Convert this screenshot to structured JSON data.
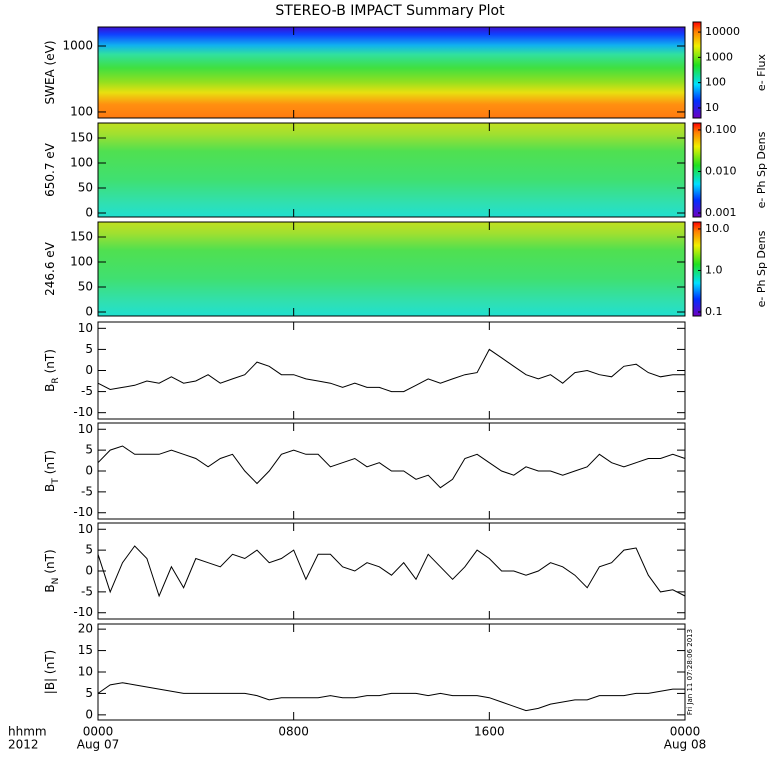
{
  "title": "STEREO-B IMPACT Summary Plot",
  "stamp": "Fri Jan 11 07:28:06 2013",
  "x_axis": {
    "xlim": [
      0,
      24
    ],
    "xticks": [
      {
        "value": 0,
        "label": "0000"
      },
      {
        "value": 8,
        "label": "0800"
      },
      {
        "value": 16,
        "label": "1600"
      },
      {
        "value": 24,
        "label": "0000"
      }
    ],
    "date_labels": [
      {
        "value": 0,
        "label": "Aug 07"
      },
      {
        "value": 24,
        "label": "Aug 08"
      }
    ],
    "corner_labels": [
      "hhmm",
      "2012"
    ]
  },
  "chart_data": [
    {
      "type": "spectrogram",
      "ylabel": "SWEA (eV)",
      "log_y": true,
      "ylim": [
        81,
        1940
      ],
      "yticks": [
        100,
        1000
      ],
      "colorbar": {
        "label": "e- Flux",
        "log": true,
        "clim": [
          4,
          25000
        ],
        "ticks": [
          10,
          100,
          1000,
          10000
        ]
      },
      "palette": "swea"
    },
    {
      "type": "spectrogram",
      "ylabel": "650.7 eV",
      "log_y": false,
      "ylim": [
        -8,
        180
      ],
      "yticks": [
        0,
        50,
        100,
        150
      ],
      "colorbar": {
        "label": "e- Ph Sp Dens",
        "log": true,
        "clim": [
          0.0008,
          0.147
        ],
        "ticks": [
          {
            "value": 0.001,
            "label": "0.001"
          },
          {
            "value": 0.01,
            "label": "0.010"
          },
          {
            "value": 0.1,
            "label": "0.100"
          }
        ]
      },
      "palette": "pad"
    },
    {
      "type": "spectrogram",
      "ylabel": "246.6 eV",
      "log_y": false,
      "ylim": [
        -8,
        180
      ],
      "yticks": [
        0,
        50,
        100,
        150
      ],
      "colorbar": {
        "label": "e- Ph Sp Dens",
        "log": true,
        "clim": [
          0.08,
          14.7
        ],
        "ticks": [
          0.1,
          {
            "value": 1,
            "label": "1.0"
          },
          {
            "value": 10,
            "label": "10.0"
          }
        ]
      },
      "palette": "pad"
    },
    {
      "type": "line",
      "ylabel": "B",
      "ylabel_sub": "R",
      "ylabel_unit": "(nT)",
      "ylim": [
        -11.5,
        11.5
      ],
      "yticks": [
        -10,
        -5,
        0,
        5,
        10
      ],
      "color": "#000000",
      "x": [
        0,
        0.5,
        1,
        1.5,
        2,
        2.5,
        3,
        3.5,
        4,
        4.5,
        5,
        5.5,
        6,
        6.5,
        7,
        7.5,
        8,
        8.5,
        9,
        9.5,
        10,
        10.5,
        11,
        11.5,
        12,
        12.5,
        13,
        13.5,
        14,
        14.5,
        15,
        15.5,
        16,
        16.5,
        17,
        17.5,
        18,
        18.5,
        19,
        19.5,
        20,
        20.5,
        21,
        21.5,
        22,
        22.5,
        23,
        23.5,
        24
      ],
      "values": [
        -3,
        -4.5,
        -4,
        -3.5,
        -2.5,
        -3,
        -1.5,
        -3,
        -2.5,
        -1,
        -3,
        -2,
        -1,
        2,
        1,
        -1,
        -1,
        -2,
        -2.5,
        -3,
        -4,
        -3,
        -4,
        -4,
        -5,
        -5,
        -3.5,
        -2,
        -3,
        -2,
        -1,
        -0.5,
        5,
        3,
        1,
        -1,
        -2,
        -1,
        -3,
        -0.5,
        0,
        -1,
        -1.5,
        1,
        1.5,
        -0.5,
        -1.5,
        -1,
        -1
      ]
    },
    {
      "type": "line",
      "ylabel": "B",
      "ylabel_sub": "T",
      "ylabel_unit": "(nT)",
      "ylim": [
        -11.5,
        11.5
      ],
      "yticks": [
        -10,
        -5,
        0,
        5,
        10
      ],
      "color": "#000000",
      "x": [
        0,
        0.5,
        1,
        1.5,
        2,
        2.5,
        3,
        3.5,
        4,
        4.5,
        5,
        5.5,
        6,
        6.5,
        7,
        7.5,
        8,
        8.5,
        9,
        9.5,
        10,
        10.5,
        11,
        11.5,
        12,
        12.5,
        13,
        13.5,
        14,
        14.5,
        15,
        15.5,
        16,
        16.5,
        17,
        17.5,
        18,
        18.5,
        19,
        19.5,
        20,
        20.5,
        21,
        21.5,
        22,
        22.5,
        23,
        23.5,
        24
      ],
      "values": [
        2,
        5,
        6,
        4,
        4,
        4,
        5,
        4,
        3,
        1,
        3,
        4,
        0,
        -3,
        0,
        4,
        5,
        4,
        4,
        1,
        2,
        3,
        1,
        2,
        0,
        0,
        -2,
        -1,
        -4,
        -2,
        3,
        4,
        2,
        0,
        -1,
        1,
        0,
        0,
        -1,
        0,
        1,
        4,
        2,
        1,
        2,
        3,
        3,
        4,
        3
      ]
    },
    {
      "type": "line",
      "ylabel": "B",
      "ylabel_sub": "N",
      "ylabel_unit": "(nT)",
      "ylim": [
        -11.5,
        11.5
      ],
      "yticks": [
        -10,
        -5,
        0,
        5,
        10
      ],
      "color": "#000000",
      "x": [
        0,
        0.5,
        1,
        1.5,
        2,
        2.5,
        3,
        3.5,
        4,
        4.5,
        5,
        5.5,
        6,
        6.5,
        7,
        7.5,
        8,
        8.5,
        9,
        9.5,
        10,
        10.5,
        11,
        11.5,
        12,
        12.5,
        13,
        13.5,
        14,
        14.5,
        15,
        15.5,
        16,
        16.5,
        17,
        17.5,
        18,
        18.5,
        19,
        19.5,
        20,
        20.5,
        21,
        21.5,
        22,
        22.5,
        23,
        23.5,
        24
      ],
      "values": [
        4,
        -5,
        2,
        6,
        3,
        -6,
        1,
        -4,
        3,
        2,
        1,
        4,
        3,
        5,
        2,
        3,
        5,
        -2,
        4,
        4,
        1,
        0,
        2,
        1,
        -1,
        2,
        -2,
        4,
        1,
        -2,
        1,
        5,
        3,
        0,
        0,
        -1,
        0,
        2,
        1,
        -1,
        -4,
        1,
        2,
        5,
        5.5,
        -1,
        -5,
        -4.5,
        -6
      ]
    },
    {
      "type": "line",
      "ylabel": "|B| (nT)",
      "ylim": [
        -1.2,
        21.2
      ],
      "yticks": [
        0,
        5,
        10,
        15,
        20
      ],
      "color": "#000000",
      "x": [
        0,
        0.5,
        1,
        1.5,
        2,
        2.5,
        3,
        3.5,
        4,
        4.5,
        5,
        5.5,
        6,
        6.5,
        7,
        7.5,
        8,
        8.5,
        9,
        9.5,
        10,
        10.5,
        11,
        11.5,
        12,
        12.5,
        13,
        13.5,
        14,
        14.5,
        15,
        15.5,
        16,
        16.5,
        17,
        17.5,
        18,
        18.5,
        19,
        19.5,
        20,
        20.5,
        21,
        21.5,
        22,
        22.5,
        23,
        23.5,
        24
      ],
      "values": [
        5,
        7,
        7.5,
        7,
        6.5,
        6,
        5.5,
        5,
        5,
        5,
        5,
        5,
        5,
        4.5,
        3.5,
        4,
        4,
        4,
        4,
        4.5,
        4,
        4,
        4.5,
        4.5,
        5,
        5,
        5,
        4.5,
        5,
        4.5,
        4.5,
        4.5,
        4,
        3,
        2,
        1,
        1.5,
        2.5,
        3,
        3.5,
        3.5,
        4.5,
        4.5,
        4.5,
        5,
        5,
        5.5,
        6,
        6
      ]
    }
  ]
}
